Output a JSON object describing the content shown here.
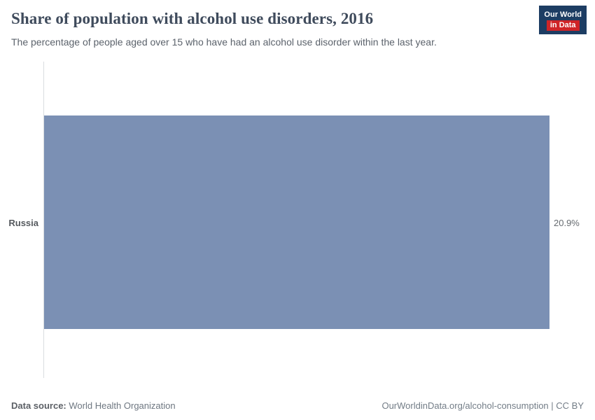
{
  "header": {
    "title": "Share of population with alcohol use disorders, 2016",
    "subtitle": "The percentage of people aged over 15 who have had an alcohol use disorder within the last year."
  },
  "logo": {
    "line1": "Our World",
    "line2": "in Data"
  },
  "chart_data": {
    "type": "bar",
    "orientation": "horizontal",
    "title": "Share of population with alcohol use disorders, 2016",
    "subtitle": "The percentage of people aged over 15 who have had an alcohol use disorder within the last year.",
    "categories": [
      "Russia"
    ],
    "values": [
      20.9
    ],
    "value_labels": [
      "20.9%"
    ],
    "xlabel": "",
    "ylabel": "",
    "xlim": [
      0,
      20.9
    ],
    "grid": false,
    "legend": "none",
    "bar_color": "#7b90b4"
  },
  "footer": {
    "source_label": "Data source:",
    "source_value": "World Health Organization",
    "credit": "OurWorldinData.org/alcohol-consumption | CC BY"
  },
  "colors": {
    "bar": "#7b90b4",
    "title": "#3f4b5c",
    "logo_blue": "#1d3d63",
    "logo_red": "#cf2427",
    "axis_line": "#dadde0"
  }
}
